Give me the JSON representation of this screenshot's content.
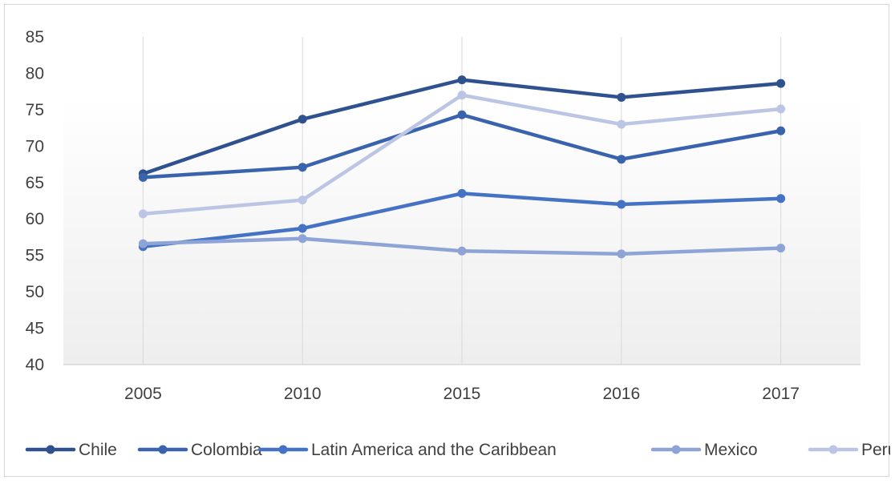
{
  "chart_data": {
    "type": "line",
    "title": "",
    "xlabel": "",
    "ylabel": "",
    "categories": [
      "2005",
      "2010",
      "2015",
      "2016",
      "2017"
    ],
    "ylim": [
      40,
      85
    ],
    "yticks": [
      "40",
      "45",
      "50",
      "55",
      "60",
      "65",
      "70",
      "75",
      "80",
      "85"
    ],
    "grid": "vertical",
    "legend_position": "bottom",
    "series": [
      {
        "name": "Chile",
        "color": "#2f528f",
        "values": [
          66.2,
          73.7,
          79.1,
          76.7,
          78.6
        ]
      },
      {
        "name": "Colombia",
        "color": "#3a63ad",
        "values": [
          65.7,
          67.1,
          74.3,
          68.2,
          72.1
        ]
      },
      {
        "name": "Latin America and the Caribbean",
        "color": "#4472c4",
        "values": [
          56.2,
          58.7,
          63.5,
          62.0,
          62.8
        ]
      },
      {
        "name": "Mexico",
        "color": "#8fa4d6",
        "values": [
          56.6,
          57.3,
          55.6,
          55.2,
          56.0
        ]
      },
      {
        "name": "Peru",
        "color": "#bcc6e4",
        "values": [
          60.7,
          62.6,
          77.0,
          73.0,
          75.1
        ]
      }
    ]
  }
}
